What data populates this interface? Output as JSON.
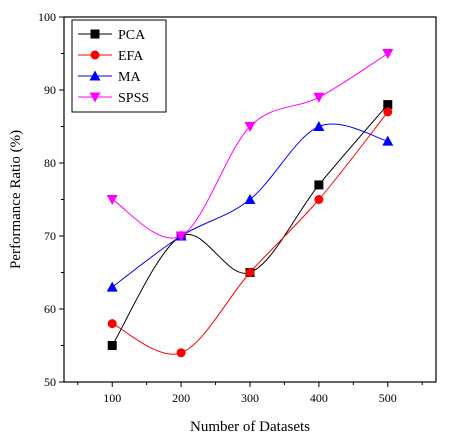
{
  "chart_data": {
    "type": "line",
    "x": [
      100,
      200,
      300,
      400,
      500
    ],
    "xlim": [
      30,
      570
    ],
    "ylim": [
      50,
      100
    ],
    "xticks": [
      100,
      200,
      300,
      400,
      500
    ],
    "yticks": [
      50,
      60,
      70,
      80,
      90,
      100
    ],
    "xlabel": "Number of Datasets",
    "ylabel": "Performance Ratio (%)",
    "smooth": true,
    "grid": false,
    "legend_position": "top-left",
    "series": [
      {
        "name": "PCA",
        "values": [
          55,
          70,
          65,
          77,
          88
        ],
        "color": "#000000",
        "marker": "square"
      },
      {
        "name": "EFA",
        "values": [
          58,
          54,
          65,
          75,
          87
        ],
        "color": "#ff0000",
        "marker": "circle"
      },
      {
        "name": "MA",
        "values": [
          63,
          70,
          75,
          85,
          83
        ],
        "color": "#0000ff",
        "marker": "triangle-up"
      },
      {
        "name": "SPSS",
        "values": [
          75,
          70,
          85,
          89,
          95
        ],
        "color": "#ff00ff",
        "marker": "triangle-down"
      }
    ]
  }
}
